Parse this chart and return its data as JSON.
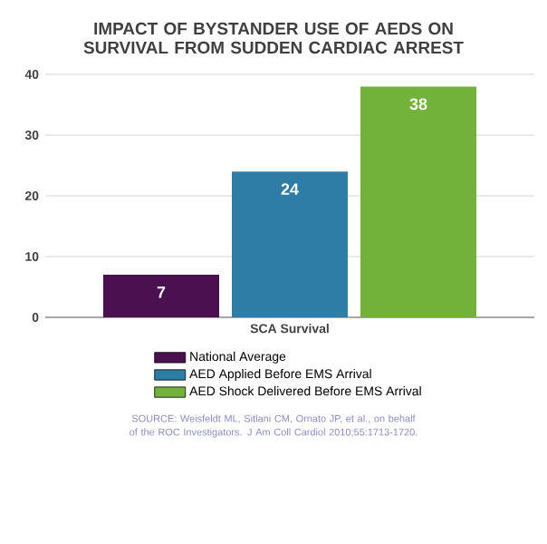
{
  "chart_data": {
    "type": "bar",
    "title": "IMPACT OF BYSTANDER USE OF AEDS ON SURVIVAL FROM SUDDEN CARDIAC ARREST",
    "categories": [
      "SCA Survival"
    ],
    "series": [
      {
        "name": "National Average",
        "color": "#4b1050",
        "values": [
          7
        ]
      },
      {
        "name": "AED Applied Before EMS Arrival",
        "color": "#2e7da6",
        "values": [
          24
        ]
      },
      {
        "name": "AED Shock Delivered Before EMS Arrival",
        "color": "#72b23a",
        "values": [
          38
        ]
      }
    ],
    "ylim": [
      0,
      40
    ],
    "yticks": [
      0,
      10,
      20,
      30,
      40
    ],
    "grid": "y",
    "legend": "bottom",
    "data_labels": true,
    "annotations": [
      "SOURCE: Weisfeldt ML, Sitlani CM, Ornato JP, et al., on behalf of the ROC Investigators. J Am Coll Cardiol 2010;55:1713-1720."
    ]
  }
}
